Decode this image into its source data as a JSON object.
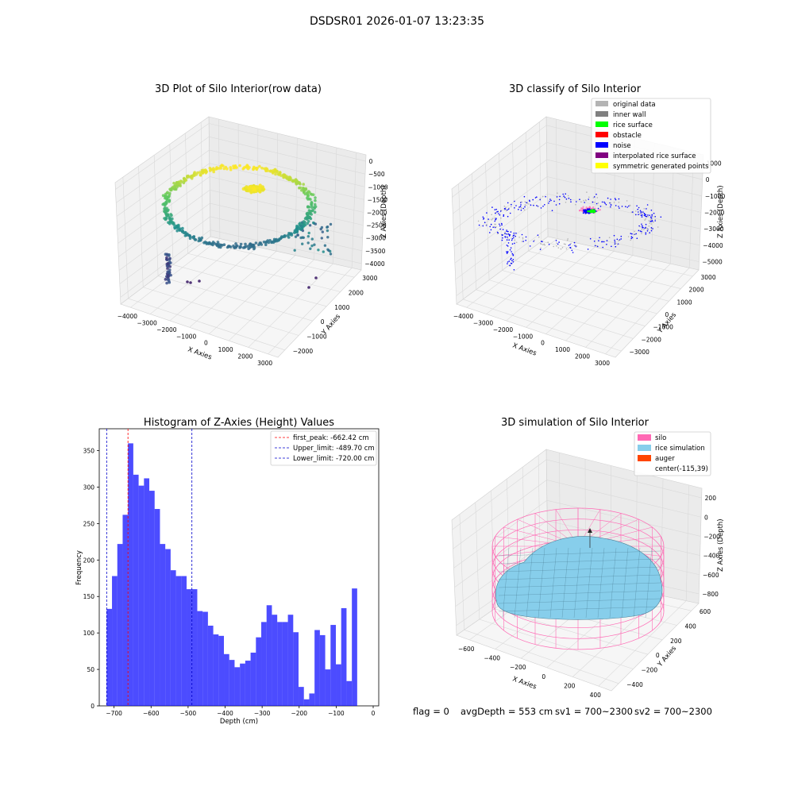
{
  "suptitle": "DSDSR01 2026-01-07 13:23:35",
  "footer": {
    "flag": "flag = 0",
    "avg": "avgDepth = 553 cm",
    "sv1": "sv1 = 700~2300",
    "sv2": "sv2 = 700~2300"
  },
  "chart_data": [
    {
      "type": "scatter",
      "title": "3D Plot of Silo Interior(row data)",
      "xlabel": "X Axies",
      "ylabel": "Y Axies",
      "zlabel": "Z Axies (Depth)",
      "x_ticks": [
        "−4000",
        "−3000",
        "−2000",
        "−1000",
        "0",
        "1000",
        "2000",
        "3000"
      ],
      "y_ticks": [
        "−2000",
        "−1000",
        "0",
        "1000",
        "2000",
        "3000"
      ],
      "z_ticks": [
        "0",
        "−500",
        "−1000",
        "−1500",
        "−2000",
        "−2500",
        "−3000",
        "−3500",
        "−4000"
      ],
      "colormap": "viridis",
      "grid": true
    },
    {
      "type": "scatter",
      "title": "3D classify of Silo Interior",
      "xlabel": "X Axies",
      "ylabel": "Y Axies",
      "zlabel": "Z Axies (Depth)",
      "x_ticks": [
        "−4000",
        "−3000",
        "−2000",
        "−1000",
        "0",
        "1000",
        "2000",
        "3000"
      ],
      "y_ticks": [
        "−3000",
        "−2000",
        "−1000",
        "0",
        "1000",
        "2000",
        "3000"
      ],
      "z_ticks": [
        "1000",
        "0",
        "−1000",
        "−2000",
        "−3000",
        "−4000",
        "−5000"
      ],
      "legend": [
        {
          "label": "original data",
          "color": "#b4b4b4"
        },
        {
          "label": "inner wall",
          "color": "#808080"
        },
        {
          "label": "rice surface",
          "color": "#00ff00"
        },
        {
          "label": "obstacle",
          "color": "#ff0000"
        },
        {
          "label": "noise",
          "color": "#0000ff"
        },
        {
          "label": "interpolated rice surface",
          "color": "#800080"
        },
        {
          "label": "symmetric generated points",
          "color": "#ffff00"
        }
      ],
      "legend_loc": "upper right",
      "grid": true
    },
    {
      "type": "bar",
      "title": "Histogram of Z-Axies (Height) Values",
      "xlabel": "Depth (cm)",
      "ylabel": "Frequency",
      "xlim": [
        -740,
        15
      ],
      "ylim": [
        0,
        380
      ],
      "x_ticks": [
        -700,
        -600,
        -500,
        -400,
        -300,
        -200,
        -100,
        0
      ],
      "y_ticks": [
        0,
        50,
        100,
        150,
        200,
        250,
        300,
        350
      ],
      "bin_start": -720,
      "bin_width": 14.4,
      "values": [
        133,
        178,
        222,
        262,
        360,
        317,
        302,
        312,
        295,
        270,
        222,
        215,
        186,
        178,
        178,
        160,
        160,
        130,
        129,
        110,
        98,
        96,
        71,
        63,
        53,
        58,
        62,
        73,
        94,
        115,
        138,
        125,
        115,
        115,
        125,
        101,
        26,
        9,
        17,
        104,
        97,
        50,
        111,
        57,
        134,
        34,
        161
      ],
      "bar_color": "#0000ff",
      "vlines": [
        {
          "label": "first_peak: -662.42 cm",
          "x": -662.42,
          "color": "#ff0000"
        },
        {
          "label": "Upper_limit: -489.70 cm",
          "x": -489.7,
          "color": "#0000cc"
        },
        {
          "label": "Lower_limit: -720.00 cm",
          "x": -720.0,
          "color": "#0000cc"
        }
      ],
      "legend_loc": "upper right"
    },
    {
      "type": "surface",
      "title": "3D simulation of Silo Interior",
      "xlabel": "X Axies",
      "ylabel": "Y Axies",
      "zlabel": "Z Axies (Depth)",
      "x_ticks": [
        "−600",
        "−400",
        "−200",
        "0",
        "200",
        "400"
      ],
      "y_ticks": [
        "−400",
        "−200",
        "0",
        "200",
        "400",
        "600"
      ],
      "z_ticks": [
        "200",
        "0",
        "−200",
        "−400",
        "−600",
        "−800"
      ],
      "legend": [
        {
          "label": "silo",
          "color": "#ff69b4"
        },
        {
          "label": "rice simulation",
          "color": "#87ceeb"
        },
        {
          "label": "auger",
          "color": "#ff4500"
        },
        {
          "label": "center(-115,39)",
          "color": ""
        }
      ],
      "legend_loc": "upper right",
      "grid": true
    }
  ]
}
